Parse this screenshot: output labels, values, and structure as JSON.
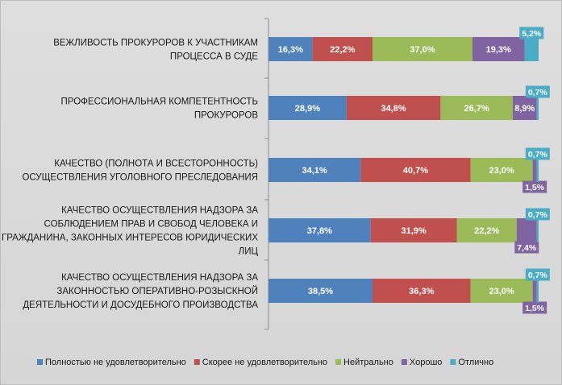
{
  "chart_data": {
    "type": "bar",
    "orientation": "horizontal",
    "stacked": true,
    "categories": [
      "ВЕЖЛИВОСТЬ ПРОКУРОРОВ К УЧАСТНИКАМ ПРОЦЕССА В СУДЕ",
      "ПРОФЕССИОНАЛЬНАЯ КОМПЕТЕНТНОСТЬ ПРОКУРОРОВ",
      "КАЧЕСТВО (ПОЛНОТА И ВСЕСТОРОННОСТЬ) ОСУЩЕСТВЛЕНИЯ УГОЛОВНОГО ПРЕСЛЕДОВАНИЯ",
      "КАЧЕСТВО ОСУЩЕСТВЛЕНИЯ НАДЗОРА ЗА СОБЛЮДЕНИЕМ ПРАВ И СВОБОД ЧЕЛОВЕКА И ГРАЖДАНИНА, ЗАКОННЫХ ИНТЕРЕСОВ ЮРИДИЧЕСКИХ ЛИЦ",
      "КАЧЕСТВО ОСУЩЕСТВЛЕНИЯ НАДЗОРА ЗА ЗАКОННОСТЬЮ ОПЕРАТИВНО-РОЗЫСКНОЙ ДЕЯТЕЛЬНОСТИ И ДОСУДЕБНОГО ПРОИЗВОДСТВА"
    ],
    "category_lines": [
      [
        "ВЕЖЛИВОСТЬ ПРОКУРОРОВ К УЧАСТНИКАМ",
        "ПРОЦЕССА В СУДЕ"
      ],
      [
        "ПРОФЕССИОНАЛЬНАЯ КОМПЕТЕНТНОСТЬ",
        "ПРОКУРОРОВ"
      ],
      [
        "КАЧЕСТВО (ПОЛНОТА И ВСЕСТОРОННОСТЬ)",
        "ОСУЩЕСТВЛЕНИЯ УГОЛОВНОГО ПРЕСЛЕДОВАНИЯ"
      ],
      [
        "КАЧЕСТВО ОСУЩЕСТВЛЕНИЯ НАДЗОРА ЗА",
        "СОБЛЮДЕНИЕМ ПРАВ И СВОБОД ЧЕЛОВЕКА И",
        "ГРАЖДАНИНА, ЗАКОННЫХ ИНТЕРЕСОВ ЮРИДИЧЕСКИХ",
        "ЛИЦ"
      ],
      [
        "КАЧЕСТВО ОСУЩЕСТВЛЕНИЯ НАДЗОРА ЗА",
        "ЗАКОННОСТЬЮ ОПЕРАТИВНО-РОЗЫСКНОЙ",
        "ДЕЯТЕЛЬНОСТИ И ДОСУДЕБНОГО ПРОИЗВОДСТВА"
      ]
    ],
    "series": [
      {
        "name": "Полностью не удовлетворительно",
        "color": "#4f81bd",
        "values": [
          16.3,
          28.9,
          34.1,
          37.8,
          38.5
        ],
        "labels": [
          "16,3%",
          "28,9%",
          "34,1%",
          "37,8%",
          "38,5%"
        ]
      },
      {
        "name": "Скорее не удовлетворительно",
        "color": "#c0504d",
        "values": [
          22.2,
          34.8,
          40.7,
          31.9,
          36.3
        ],
        "labels": [
          "22,2%",
          "34,8%",
          "40,7%",
          "31,9%",
          "36,3%"
        ]
      },
      {
        "name": "Нейтрально",
        "color": "#9bbb59",
        "values": [
          37.0,
          26.7,
          23.0,
          22.2,
          23.0
        ],
        "labels": [
          "37,0%",
          "26,7%",
          "23,0%",
          "22,2%",
          "23,0%"
        ]
      },
      {
        "name": "Хорошо",
        "color": "#8064a2",
        "values": [
          19.3,
          8.9,
          1.5,
          7.4,
          1.5
        ],
        "labels": [
          "19,3%",
          "8,9%",
          "1,5%",
          "7,4%",
          "1,5%"
        ]
      },
      {
        "name": "Отлично",
        "color": "#4bacc6",
        "values": [
          5.2,
          0.7,
          0.7,
          0.7,
          0.7
        ],
        "labels": [
          "5,2%",
          "0,7%",
          "0,7%",
          "0,7%",
          "0,7%"
        ]
      }
    ],
    "xlim": [
      0,
      100
    ],
    "grid": false,
    "legend": "bottom"
  }
}
